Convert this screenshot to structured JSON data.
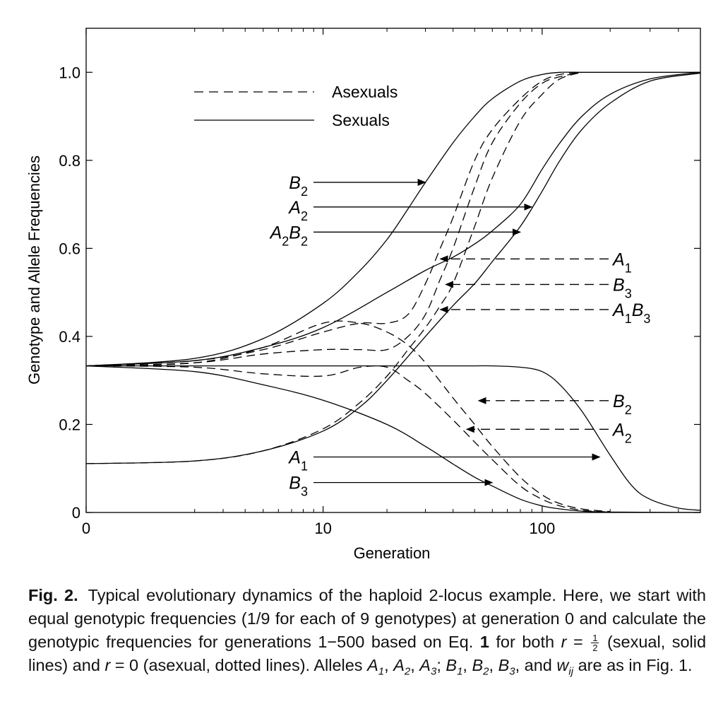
{
  "chart_data": {
    "type": "line",
    "xscale": "log1p",
    "xlabel": "Generation",
    "ylabel": "Genotype and Allele Frequencies",
    "xlim": [
      0,
      500
    ],
    "ylim": [
      0,
      1.1
    ],
    "xticks": [
      0,
      10,
      100
    ],
    "xtick_labels": [
      "0",
      "10",
      "100"
    ],
    "yticks": [
      0,
      0.2,
      0.4,
      0.6,
      0.8,
      1.0
    ],
    "ytick_labels": [
      "0",
      "0.2",
      "0.4",
      "0.6",
      "0.8",
      "1.0"
    ],
    "legend": [
      {
        "label": "Asexuals",
        "style": "dashed"
      },
      {
        "label": "Sexuals",
        "style": "solid"
      }
    ],
    "series": [
      {
        "name": "B2 (sexual)",
        "style": "solid",
        "x": [
          0,
          2,
          5,
          10,
          15,
          20,
          25,
          30,
          40,
          50,
          60,
          80,
          100,
          120,
          150,
          200,
          300,
          500
        ],
        "y": [
          0.333,
          0.35,
          0.395,
          0.475,
          0.55,
          0.62,
          0.69,
          0.75,
          0.84,
          0.9,
          0.94,
          0.98,
          0.995,
          1.0,
          1.0,
          1.0,
          1.0,
          1.0
        ]
      },
      {
        "name": "A2 (sexual)",
        "style": "solid",
        "x": [
          0,
          2,
          5,
          10,
          20,
          30,
          40,
          50,
          60,
          80,
          100,
          120,
          150,
          200,
          300,
          500
        ],
        "y": [
          0.333,
          0.345,
          0.375,
          0.42,
          0.5,
          0.55,
          0.58,
          0.61,
          0.64,
          0.7,
          0.78,
          0.84,
          0.9,
          0.95,
          0.985,
          1.0
        ]
      },
      {
        "name": "A2B2 (sexual)",
        "style": "solid",
        "x": [
          0,
          2,
          5,
          10,
          15,
          20,
          30,
          40,
          50,
          60,
          80,
          100,
          120,
          150,
          200,
          300,
          500
        ],
        "y": [
          0.111,
          0.117,
          0.14,
          0.185,
          0.24,
          0.3,
          0.4,
          0.47,
          0.52,
          0.57,
          0.65,
          0.73,
          0.8,
          0.87,
          0.93,
          0.98,
          0.998
        ]
      },
      {
        "name": "A1 (sexual)",
        "style": "solid",
        "x": [
          0,
          5,
          10,
          20,
          30,
          40,
          50,
          60,
          80,
          100,
          120,
          150,
          200,
          250,
          300,
          400,
          500
        ],
        "y": [
          0.333,
          0.333,
          0.333,
          0.333,
          0.333,
          0.333,
          0.333,
          0.333,
          0.33,
          0.32,
          0.29,
          0.23,
          0.13,
          0.06,
          0.03,
          0.01,
          0.005
        ]
      },
      {
        "name": "B3 (sexual)",
        "style": "solid",
        "x": [
          0,
          2,
          5,
          10,
          20,
          30,
          40,
          50,
          60,
          80,
          100,
          120,
          150,
          200,
          500
        ],
        "y": [
          0.333,
          0.32,
          0.29,
          0.255,
          0.2,
          0.15,
          0.11,
          0.08,
          0.06,
          0.03,
          0.015,
          0.008,
          0.003,
          0.001,
          0.0
        ]
      },
      {
        "name": "A1 (asexual)",
        "style": "dashed",
        "x": [
          0,
          2,
          5,
          10,
          15,
          20,
          25,
          30,
          35,
          40,
          50,
          60,
          80,
          100,
          120,
          150
        ],
        "y": [
          0.333,
          0.345,
          0.37,
          0.41,
          0.43,
          0.43,
          0.45,
          0.52,
          0.6,
          0.67,
          0.8,
          0.87,
          0.94,
          0.98,
          0.995,
          1.0
        ]
      },
      {
        "name": "B3 (asexual)",
        "style": "dashed",
        "x": [
          0,
          2,
          5,
          10,
          15,
          20,
          25,
          30,
          35,
          40,
          50,
          60,
          80,
          100,
          120,
          150
        ],
        "y": [
          0.333,
          0.34,
          0.36,
          0.37,
          0.37,
          0.37,
          0.4,
          0.45,
          0.53,
          0.6,
          0.74,
          0.84,
          0.93,
          0.975,
          0.99,
          1.0
        ]
      },
      {
        "name": "A1B3 (asexual)",
        "style": "dashed",
        "x": [
          0,
          2,
          5,
          10,
          15,
          20,
          25,
          30,
          35,
          40,
          50,
          60,
          80,
          100,
          120,
          150
        ],
        "y": [
          0.111,
          0.117,
          0.14,
          0.19,
          0.25,
          0.31,
          0.37,
          0.42,
          0.47,
          0.52,
          0.65,
          0.76,
          0.89,
          0.95,
          0.985,
          1.0
        ]
      },
      {
        "name": "B2 (asexual)",
        "style": "dashed",
        "x": [
          0,
          2,
          5,
          10,
          15,
          20,
          25,
          30,
          40,
          50,
          60,
          80,
          100,
          120,
          150,
          200
        ],
        "y": [
          0.333,
          0.34,
          0.375,
          0.43,
          0.43,
          0.41,
          0.38,
          0.34,
          0.26,
          0.2,
          0.15,
          0.08,
          0.04,
          0.02,
          0.008,
          0.002
        ]
      },
      {
        "name": "A2 (asexual)",
        "style": "dashed",
        "x": [
          0,
          2,
          5,
          10,
          15,
          20,
          25,
          30,
          40,
          50,
          60,
          80,
          100,
          120,
          150,
          200
        ],
        "y": [
          0.333,
          0.33,
          0.315,
          0.31,
          0.33,
          0.33,
          0.3,
          0.27,
          0.21,
          0.16,
          0.12,
          0.06,
          0.03,
          0.015,
          0.005,
          0.001
        ]
      }
    ],
    "annotations": [
      {
        "label": "B",
        "sub": "2",
        "side": "left",
        "x": 30,
        "y": 0.75
      },
      {
        "label": "A",
        "sub": "2",
        "side": "left",
        "x": 90,
        "y": 0.694
      },
      {
        "label": "A",
        "sub": "2",
        "label2": "B",
        "sub2": "2",
        "side": "left",
        "x": 80,
        "y": 0.637
      },
      {
        "label": "A",
        "sub": "1",
        "side": "right",
        "x": 35,
        "y": 0.576
      },
      {
        "label": "B",
        "sub": "3",
        "side": "right",
        "x": 37,
        "y": 0.518
      },
      {
        "label": "A",
        "sub": "1",
        "label2": "B",
        "sub2": "3",
        "side": "right",
        "x": 35,
        "y": 0.461
      },
      {
        "label": "B",
        "sub": "2",
        "side": "right",
        "x": 52,
        "y": 0.254
      },
      {
        "label": "A",
        "sub": "2",
        "side": "right",
        "x": 46,
        "y": 0.189
      },
      {
        "label": "A",
        "sub": "1",
        "side": "left",
        "x": 180,
        "y": 0.126
      },
      {
        "label": "B",
        "sub": "3",
        "side": "left",
        "x": 60,
        "y": 0.068
      }
    ]
  },
  "caption": {
    "fig_label": "Fig. 2.",
    "t1": "Typical evolutionary dynamics of the haploid 2-locus example. Here, we start with equal genotypic frequencies (1/9 for each of 9 genotypes) at generation 0 and calculate the genotypic frequencies for generations 1−500 based on Eq.",
    "eq_num": "1",
    "t2": "for both",
    "r": "r",
    "eq1": "=",
    "num": "1",
    "den": "2",
    "t3": "(sexual, solid lines) and",
    "r2": "r",
    "eq2": "= 0",
    "t4": "(asexual, dotted lines). Alleles",
    "A": "A",
    "s1": "1",
    "s2": "2",
    "s3": "3",
    "B": "B",
    "t5": "and",
    "w": "w",
    "ij": "ij",
    "t6": "are as in Fig. 1."
  }
}
